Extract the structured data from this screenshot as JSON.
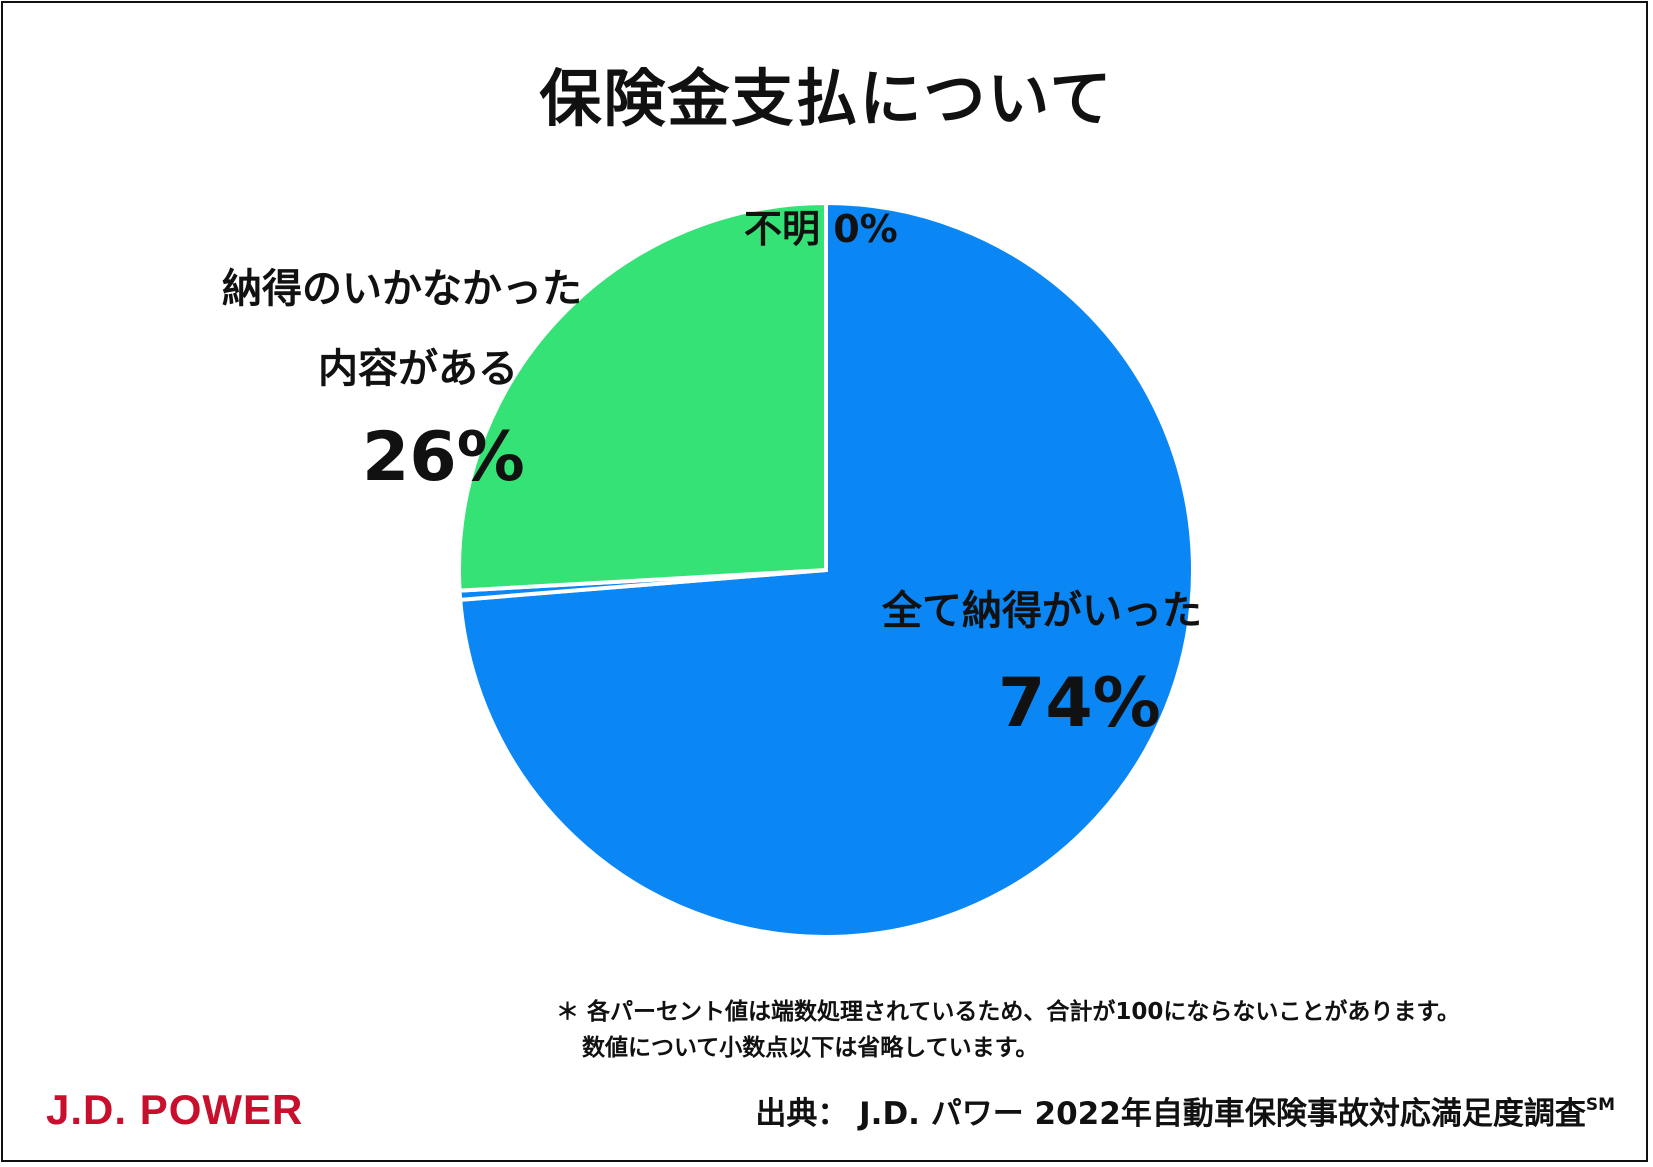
{
  "title": "保険金支払について",
  "chart_data": {
    "type": "pie",
    "title": "保険金支払について",
    "slices": [
      {
        "label": "全て納得がいった",
        "value": 74,
        "display": "74%",
        "color": "#0b87f5"
      },
      {
        "label": "不明",
        "value": 0.4,
        "display": "0%",
        "color": "#0b87f5"
      },
      {
        "label": "納得のいかなかった内容がある",
        "value": 26,
        "display": "26%",
        "color": "#35e276"
      }
    ],
    "start_angle": "12 o'clock",
    "direction": "clockwise",
    "legend": "none"
  },
  "labels": {
    "unknown": "不明 0%",
    "dissatisfied_line1": "納得のいかなかった",
    "dissatisfied_line2": "内容がある",
    "dissatisfied_pct": "26%",
    "satisfied": "全て納得がいった",
    "satisfied_pct": "74%"
  },
  "notes": {
    "line1": "＊ 各パーセント値は端数処理されているため、合計が100にならないことがあります。",
    "line2": "数値について小数点以下は省略しています。"
  },
  "source": {
    "text": "出典： J.D. パワー 2022年自動車保険事故対応満足度調査",
    "mark": "SM"
  },
  "logo": {
    "text": "J.D. POWER",
    "color": "#c8102e"
  }
}
